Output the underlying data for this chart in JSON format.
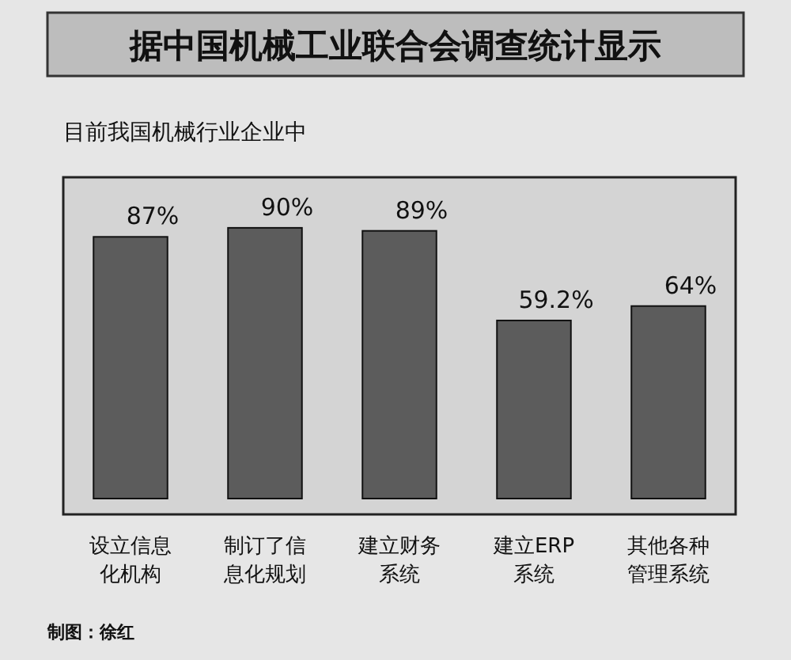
{
  "chart_data": {
    "type": "bar",
    "title": "据中国机械工业联合会调查统计显示",
    "subtitle": "目前我国机械行业企业中",
    "categories": [
      "设立信息化机构",
      "制订了信息化规划",
      "建立财务系统",
      "建立ERP系统",
      "其他各种管理系统"
    ],
    "values": [
      87,
      90,
      89,
      59.2,
      64
    ],
    "value_labels": [
      "87%",
      "90%",
      "89%",
      "59.2%",
      "64%"
    ],
    "color": "#5c5c5c",
    "annotations": [
      "制图：徐红"
    ]
  }
}
